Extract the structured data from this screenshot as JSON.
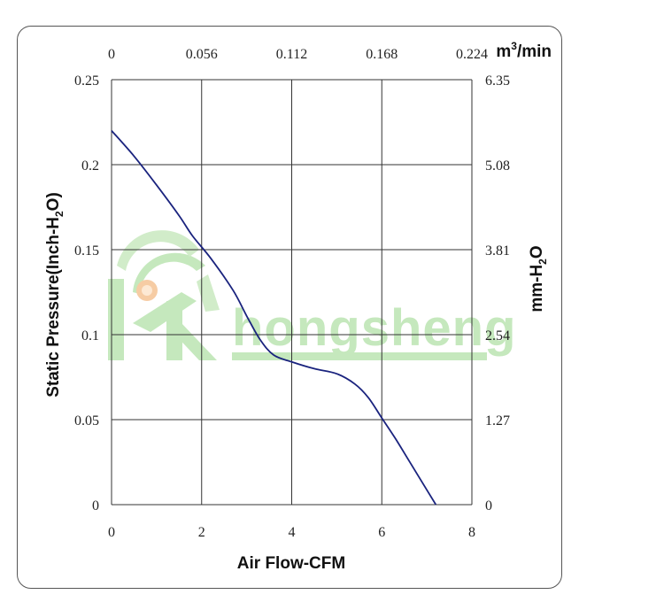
{
  "chart_data": {
    "type": "line",
    "xlabel": "Air Flow-CFM",
    "ylabel": "Static Pressure(Inch-H2O)",
    "ylabel_parts": [
      "Static Pressure(Inch-H",
      "2",
      "O)"
    ],
    "x2label": "m3/min",
    "x2label_parts": [
      "m",
      "3",
      "/min"
    ],
    "y2label": "mm-H2O",
    "y2label_parts": [
      "mm-H",
      "2",
      "O"
    ],
    "xlim": [
      0,
      8
    ],
    "ylim": [
      0,
      0.25
    ],
    "x_ticks": [
      "0",
      "2",
      "4",
      "6",
      "8"
    ],
    "y_ticks": [
      "0",
      "0.05",
      "0.1",
      "0.15",
      "0.2",
      "0.25"
    ],
    "x2_ticks": [
      "0",
      "0.056",
      "0.112",
      "0.168",
      "0.224"
    ],
    "y2_ticks": [
      "0",
      "1.27",
      "2.54",
      "3.81",
      "5.08",
      "6.35"
    ],
    "grid": true,
    "line_color": "#1a237e",
    "series": [
      {
        "x": [
          0,
          0.5,
          1.0,
          1.5,
          1.8,
          2.2,
          2.7,
          3.0,
          3.3,
          3.6,
          4.0,
          4.5,
          5.0,
          5.4,
          5.7,
          6.0,
          6.3,
          6.6,
          6.9,
          7.2
        ],
        "y": [
          0.22,
          0.205,
          0.188,
          0.17,
          0.158,
          0.145,
          0.126,
          0.111,
          0.097,
          0.088,
          0.084,
          0.08,
          0.077,
          0.071,
          0.063,
          0.051,
          0.039,
          0.026,
          0.013,
          0.0
        ]
      }
    ]
  },
  "watermark": {
    "text": "hongsheng",
    "color": "#bfe6b6",
    "accent": "#f6c79b",
    "icon": "fan-logo-icon"
  }
}
